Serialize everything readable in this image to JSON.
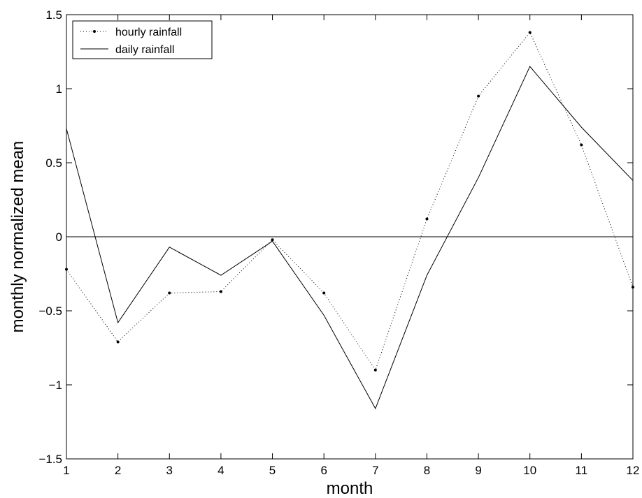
{
  "chart_data": {
    "type": "line",
    "xlabel": "month",
    "ylabel": "monthly normalized mean",
    "xlim": [
      1,
      12
    ],
    "ylim": [
      -1.5,
      1.5
    ],
    "xticks": [
      1,
      2,
      3,
      4,
      5,
      6,
      7,
      8,
      9,
      10,
      11,
      12
    ],
    "yticks": [
      -1.5,
      -1,
      -0.5,
      0,
      0.5,
      1,
      1.5
    ],
    "ytick_labels": [
      "−1.5",
      "−1",
      "−0.5",
      "0",
      "0.5",
      "1",
      "1.5"
    ],
    "x": [
      1,
      2,
      3,
      4,
      5,
      6,
      7,
      8,
      9,
      10,
      11,
      12
    ],
    "series": [
      {
        "name": "hourly rainfall",
        "style": "dotted-with-markers",
        "values": [
          -0.22,
          -0.71,
          -0.38,
          -0.37,
          -0.02,
          -0.38,
          -0.9,
          0.12,
          0.95,
          1.38,
          0.62,
          -0.34
        ]
      },
      {
        "name": "daily rainfall",
        "style": "solid",
        "values": [
          0.73,
          -0.58,
          -0.07,
          -0.26,
          -0.03,
          -0.53,
          -1.16,
          -0.26,
          0.4,
          1.15,
          0.74,
          0.38
        ]
      }
    ],
    "reference_line_y": 0,
    "legend_position": "top-left",
    "grid": false,
    "line_color": "#000000"
  }
}
